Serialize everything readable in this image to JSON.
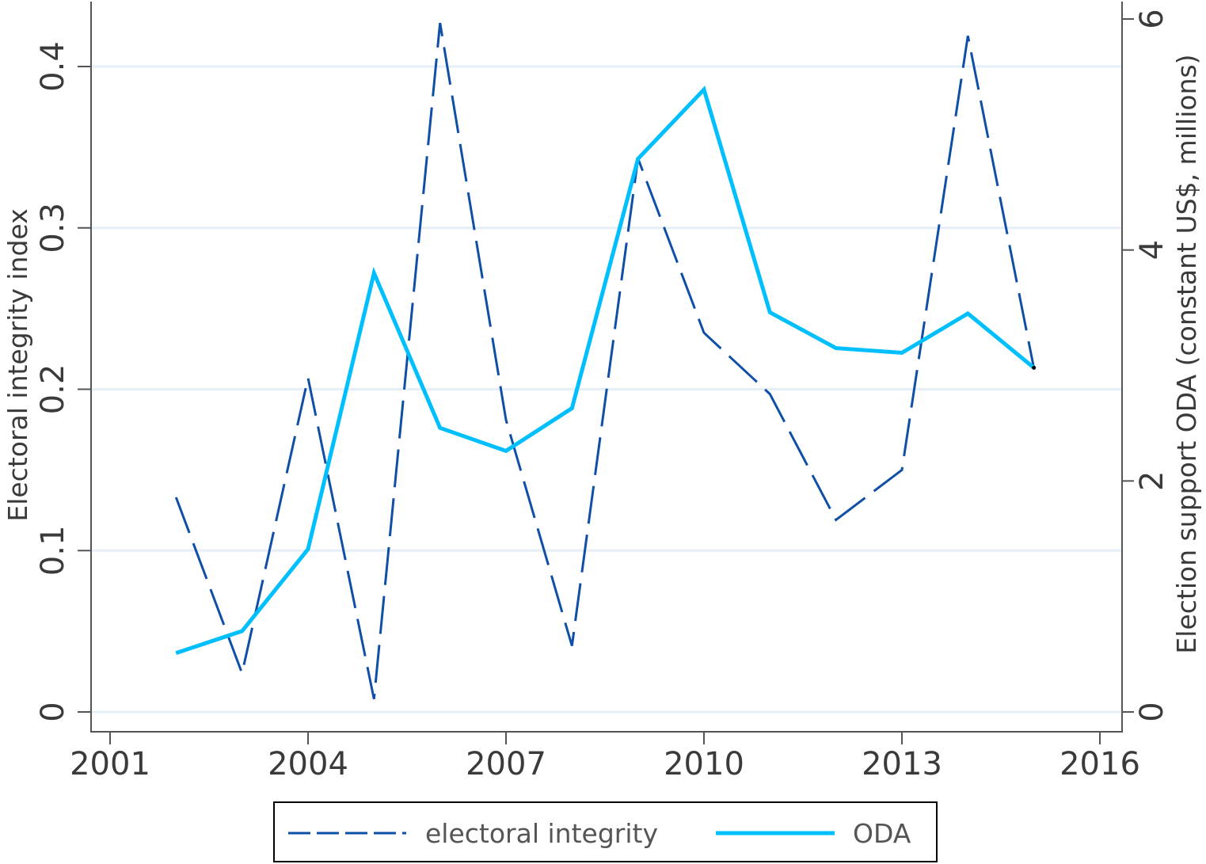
{
  "chart_data": {
    "type": "line",
    "title": "",
    "xlabel": "",
    "ylabel": "Electoral integrity index",
    "y2label": "Election support ODA (constant US$, millions)",
    "x": [
      2002,
      2003,
      2004,
      2005,
      2006,
      2007,
      2008,
      2009,
      2010,
      2011,
      2012,
      2013,
      2014,
      2015
    ],
    "xticks": [
      2001,
      2004,
      2007,
      2010,
      2013,
      2016
    ],
    "xlim": [
      2001,
      2016
    ],
    "yticks": [
      0,
      0.1,
      0.2,
      0.3,
      0.4
    ],
    "ytick_labels": [
      "0",
      "0.1",
      "0.2",
      "0.3",
      "0.4"
    ],
    "ylim": [
      0,
      0.4
    ],
    "y2ticks": [
      0,
      2,
      4,
      6
    ],
    "y2tick_labels": [
      "0",
      "2",
      "4",
      "6"
    ],
    "y2lim": [
      0,
      6
    ],
    "grid": true,
    "legend_position": "bottom",
    "series": [
      {
        "name": "electoral integrity",
        "axis": "left",
        "style": "dashed",
        "color": "#0f4fa8",
        "values": [
          0.133,
          0.024,
          0.207,
          0.008,
          0.427,
          0.181,
          0.041,
          0.343,
          0.235,
          0.197,
          0.119,
          0.15,
          0.419,
          0.213
        ]
      },
      {
        "name": "ODA",
        "axis": "right",
        "style": "solid",
        "color": "#00bfff",
        "values": [
          0.51,
          0.7,
          1.41,
          3.8,
          2.46,
          2.26,
          2.63,
          4.79,
          5.39,
          3.46,
          3.15,
          3.11,
          3.45,
          2.98
        ]
      }
    ]
  },
  "legend": {
    "items": [
      {
        "label": "electoral integrity"
      },
      {
        "label": "ODA"
      }
    ]
  },
  "colors": {
    "axis": "#555555",
    "grid": "#e6eff8",
    "text": "#3a3a3a"
  }
}
